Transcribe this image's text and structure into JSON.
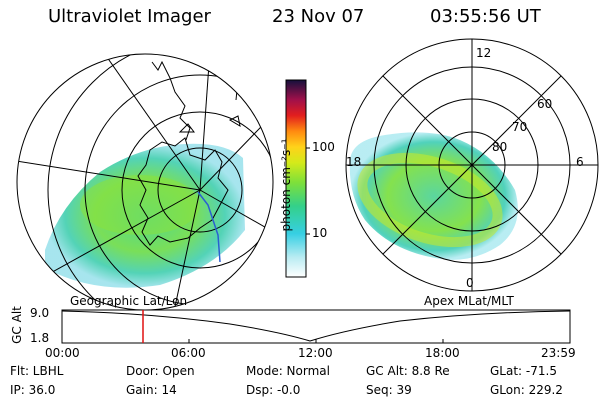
{
  "header": {
    "instrument": "Ultraviolet Imager",
    "date": "23 Nov 07",
    "time": "03:55:56 UT"
  },
  "colorbar": {
    "unit_label": "photon cm⁻²s⁻¹",
    "ticks": [
      "100",
      "10"
    ]
  },
  "geo_panel": {
    "caption": "Geographic Lat/Lon"
  },
  "polar_panel": {
    "caption": "Apex MLat/MLT",
    "mlt_labels": [
      "12",
      "18",
      "6",
      "0"
    ],
    "lat_labels": [
      "60",
      "70",
      "80"
    ]
  },
  "altitude_plot": {
    "ylabel": "GC Alt",
    "yticks": [
      "9.0",
      "1.8"
    ],
    "xticks": [
      "00:00",
      "06:00",
      "12:00",
      "18:00",
      "23:59"
    ]
  },
  "info": {
    "filter": "Flt: LBHL",
    "ip": "IP: 36.0",
    "door": "Door: Open",
    "gain": "Gain: 14",
    "mode": "Mode: Normal",
    "dsp": "Dsp:   -0.0",
    "gc_alt": "GC Alt: 8.8 Re",
    "seq": "Seq: 39",
    "glat": "GLat: -71.5",
    "glon": "GLon: 229.2"
  }
}
